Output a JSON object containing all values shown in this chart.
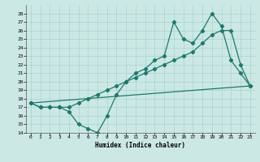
{
  "xlabel": "Humidex (Indice chaleur)",
  "bg_color": "#cce8e4",
  "line_color": "#1a7a6e",
  "xlim": [
    -0.5,
    23.5
  ],
  "ylim": [
    14,
    29
  ],
  "yticks": [
    14,
    15,
    16,
    17,
    18,
    19,
    20,
    21,
    22,
    23,
    24,
    25,
    26,
    27,
    28
  ],
  "xticks": [
    0,
    1,
    2,
    3,
    4,
    5,
    6,
    7,
    8,
    9,
    10,
    11,
    12,
    13,
    14,
    15,
    16,
    17,
    18,
    19,
    20,
    21,
    22,
    23
  ],
  "line1_x": [
    0,
    1,
    2,
    3,
    4,
    5,
    6,
    7,
    8,
    9,
    10,
    11,
    12,
    13,
    14,
    15,
    16,
    17,
    18,
    19,
    20,
    21,
    22,
    23
  ],
  "line1_y": [
    17.5,
    17.0,
    17.0,
    17.0,
    16.5,
    15.0,
    14.5,
    14.0,
    16.0,
    18.5,
    20.0,
    21.0,
    21.5,
    22.5,
    23.0,
    27.0,
    25.0,
    24.5,
    26.0,
    28.0,
    26.5,
    22.5,
    21.0,
    19.5
  ],
  "line2_x": [
    0,
    1,
    2,
    3,
    4,
    5,
    6,
    7,
    8,
    9,
    10,
    11,
    12,
    13,
    14,
    15,
    16,
    17,
    18,
    19,
    20,
    21,
    22,
    23
  ],
  "line2_y": [
    17.5,
    17.0,
    17.0,
    17.0,
    17.0,
    17.5,
    18.0,
    18.5,
    19.0,
    19.5,
    20.0,
    20.5,
    21.0,
    21.5,
    22.0,
    22.5,
    23.0,
    23.5,
    24.5,
    25.5,
    26.0,
    26.0,
    22.0,
    19.5
  ],
  "line3_x": [
    0,
    23
  ],
  "line3_y": [
    17.5,
    19.5
  ]
}
